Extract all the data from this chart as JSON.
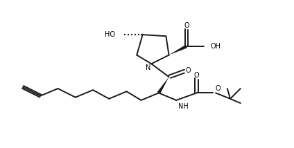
{
  "bg_color": "#ffffff",
  "line_color": "#1a1a1a",
  "line_width": 1.4,
  "fig_width": 4.24,
  "fig_height": 2.14,
  "dpi": 100,
  "xlim": [
    0,
    100
  ],
  "ylim": [
    0,
    50
  ]
}
